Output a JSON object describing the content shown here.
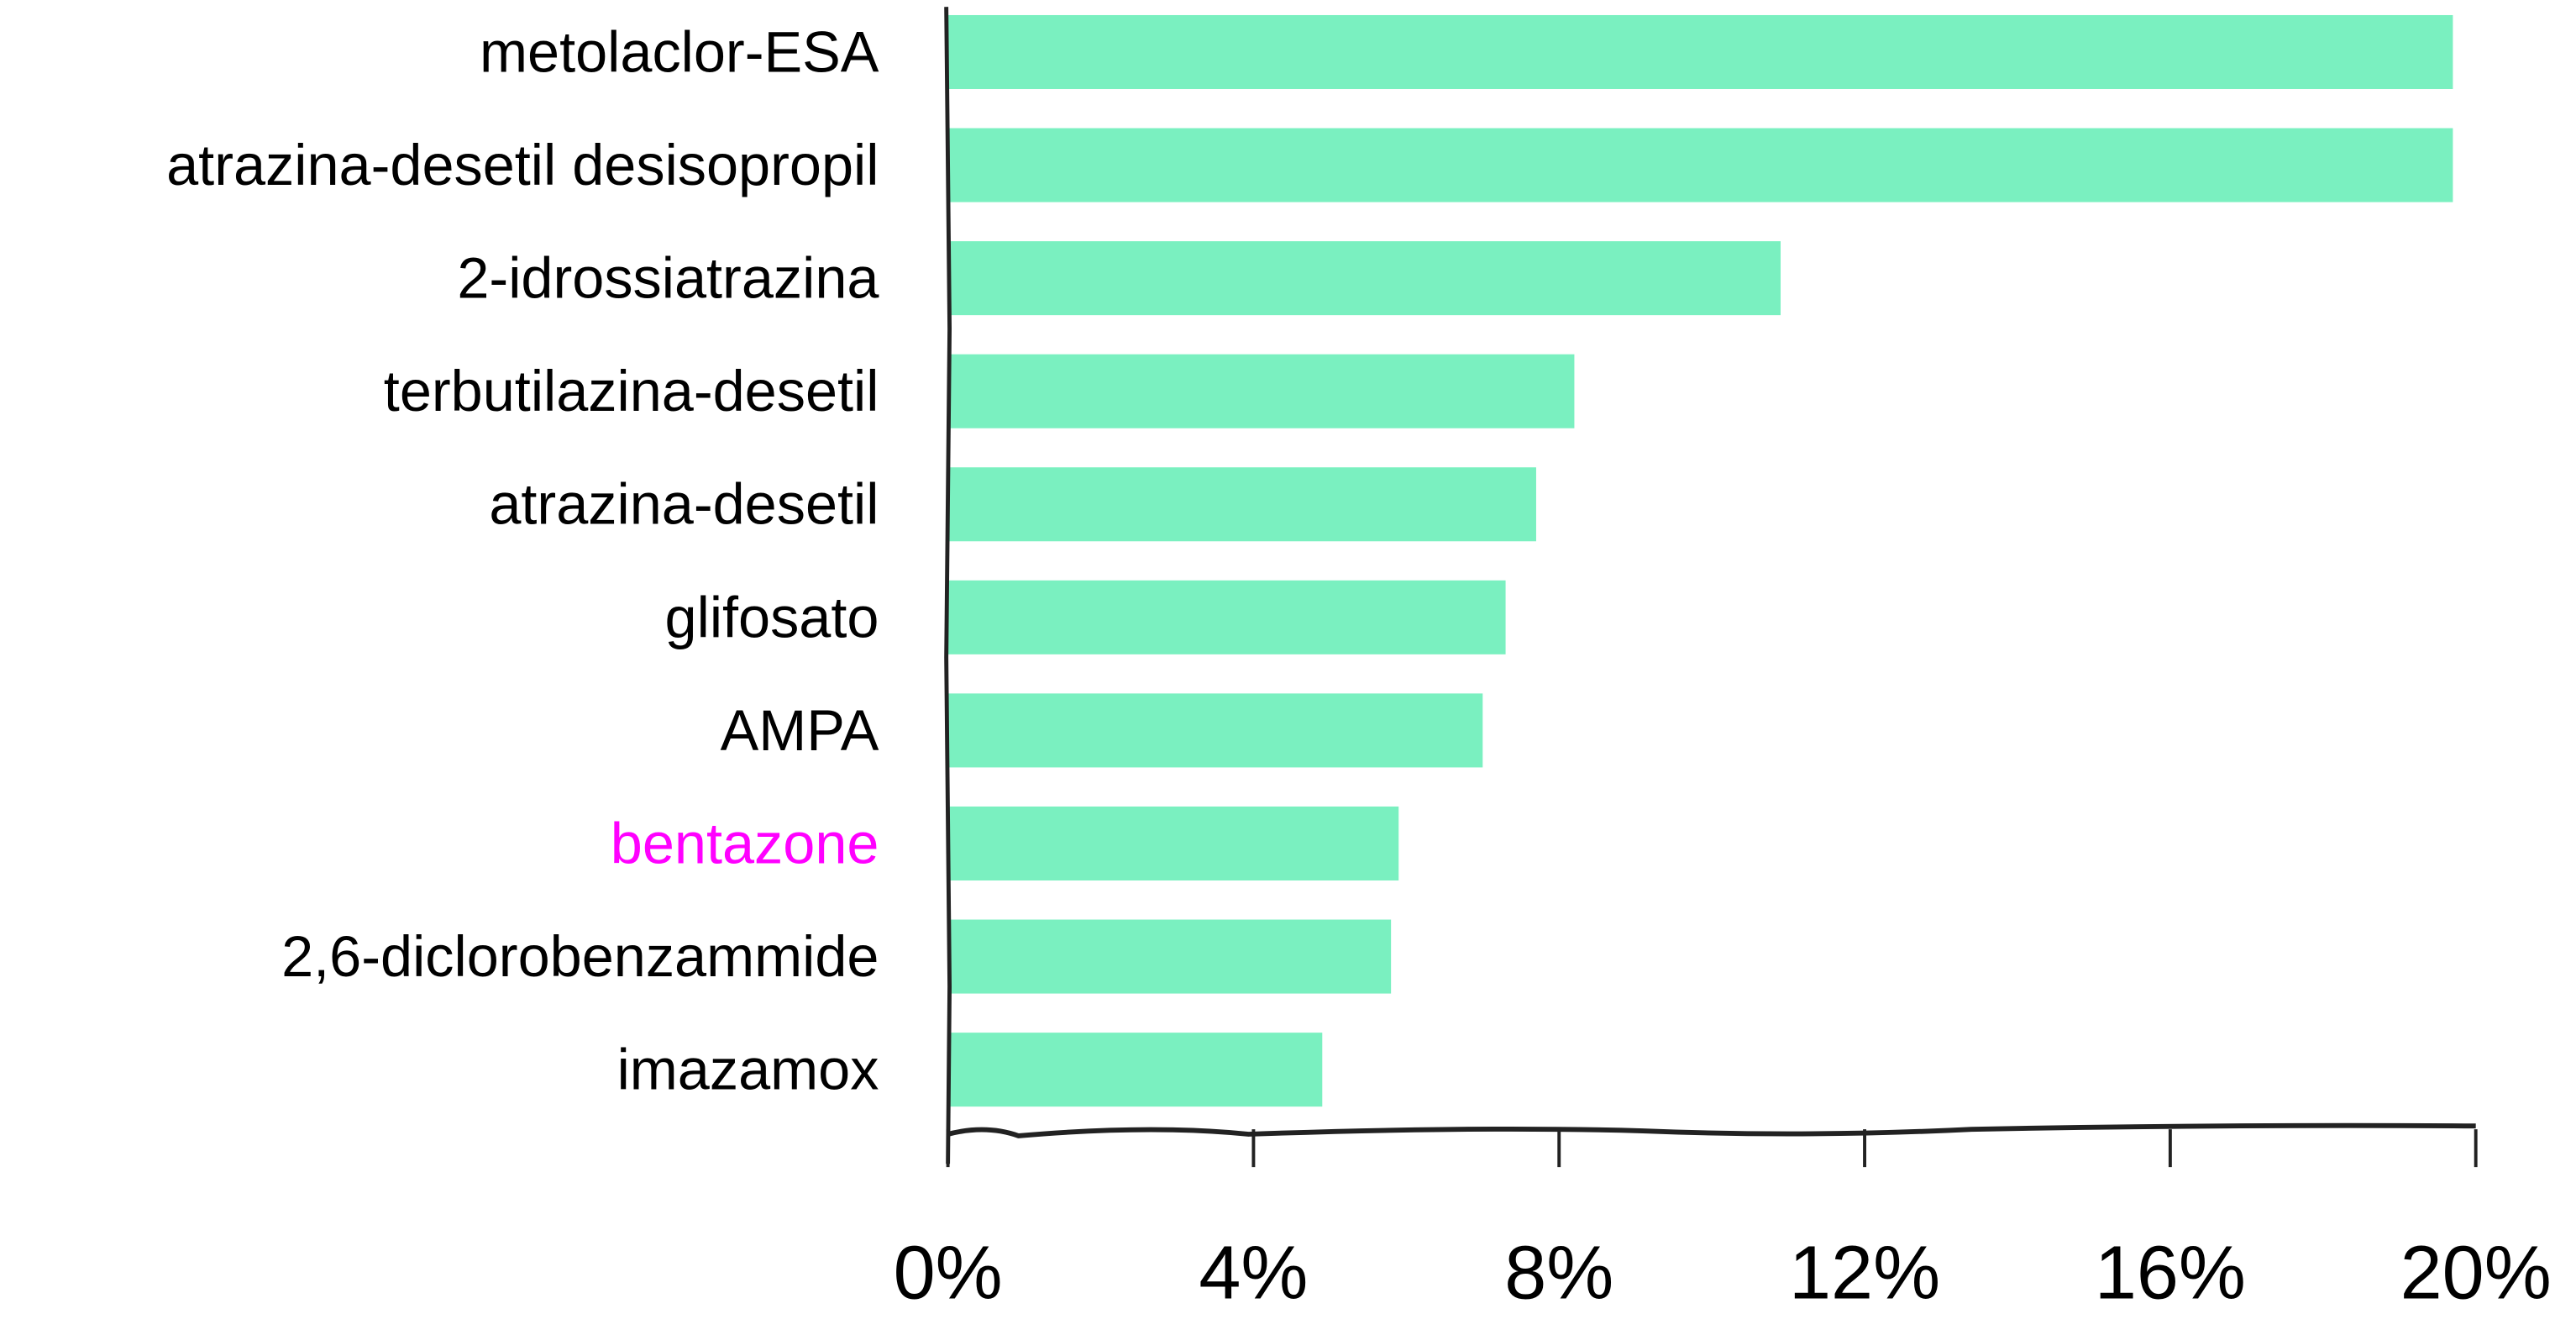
{
  "chart_data": {
    "type": "bar",
    "orientation": "horizontal",
    "title": "",
    "xlabel": "",
    "ylabel": "",
    "categories": [
      "metolaclor-ESA",
      "atrazina-desetil desisopropil",
      "2-idrossiatrazina",
      "terbutilazina-desetil",
      "atrazina-desetil",
      "glifosato",
      "AMPA",
      "bentazone",
      "2,6-diclorobenzammide",
      "imazamox"
    ],
    "values": [
      19.7,
      19.7,
      10.9,
      8.2,
      7.7,
      7.3,
      7.0,
      5.9,
      5.8,
      4.9
    ],
    "highlight": "bentazone",
    "xlim": [
      0,
      20
    ],
    "xticks": [
      0,
      4,
      8,
      12,
      16,
      20
    ],
    "xtick_labels": [
      "0%",
      "4%",
      "8%",
      "12%",
      "16%",
      "20%"
    ],
    "grid": false,
    "colors": {
      "bar": "#7af0c0",
      "label": "#000000",
      "highlight_label": "#ff00ff",
      "axis": "#222222"
    }
  }
}
